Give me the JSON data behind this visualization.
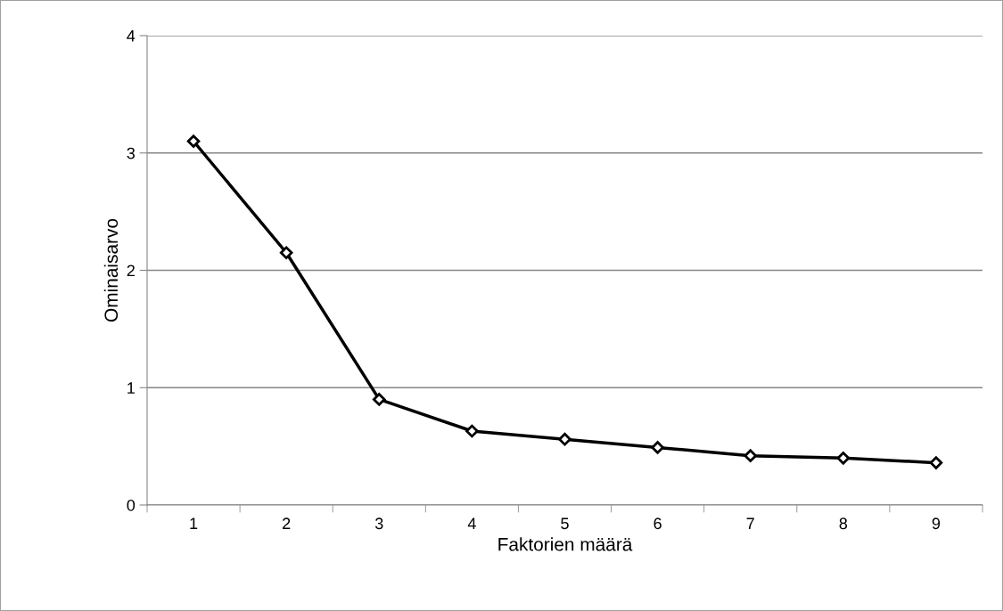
{
  "chart_data": {
    "type": "line",
    "xlabel": "Faktorien määrä",
    "ylabel": "Ominaisarvo",
    "categories": [
      "1",
      "2",
      "3",
      "4",
      "5",
      "6",
      "7",
      "8",
      "9"
    ],
    "series": [
      {
        "color": "#000000",
        "values": [
          3.1,
          2.15,
          0.9,
          0.63,
          0.56,
          0.49,
          0.42,
          0.4,
          0.36
        ]
      }
    ],
    "ylim": [
      0,
      4
    ],
    "yticks": [
      0,
      1,
      2,
      3,
      4
    ],
    "grid": "y",
    "marker": "diamond",
    "line_style": "solid",
    "legend": false
  }
}
